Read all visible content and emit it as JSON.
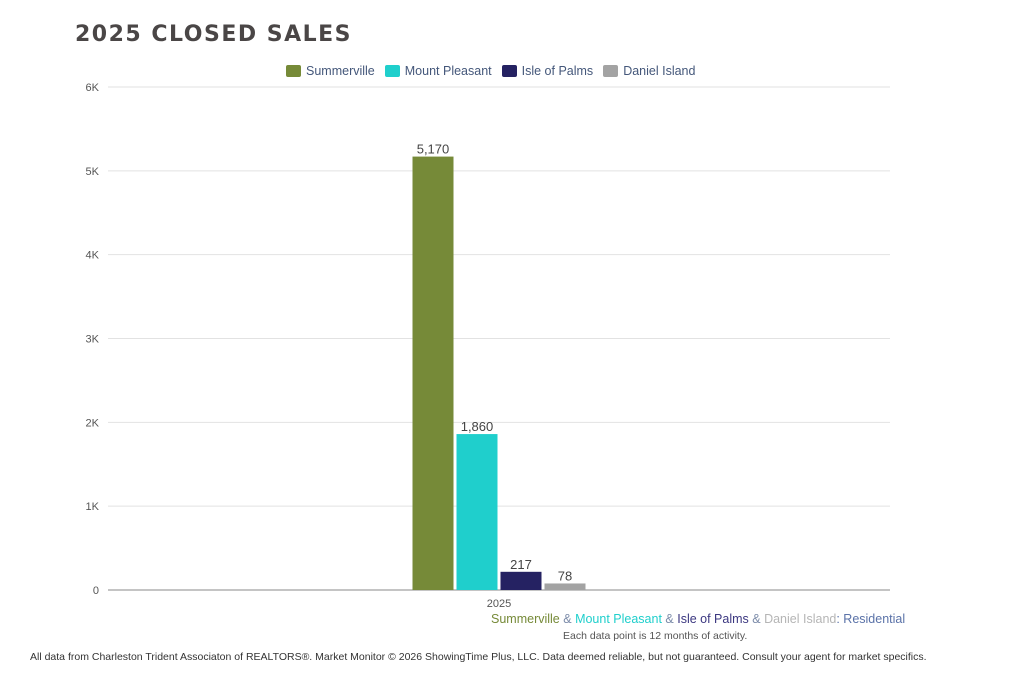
{
  "title": "2025 CLOSED SALES",
  "chart_data": {
    "type": "bar",
    "title": "2025 CLOSED SALES",
    "categories": [
      "2025"
    ],
    "series": [
      {
        "name": "Summerville",
        "values": [
          5170
        ],
        "label": "5,170",
        "color": "#768a38"
      },
      {
        "name": "Mount Pleasant",
        "values": [
          1860
        ],
        "label": "1,860",
        "color": "#1fcfcc"
      },
      {
        "name": "Isle of Palms",
        "values": [
          217
        ],
        "label": "217",
        "color": "#252262"
      },
      {
        "name": "Daniel Island",
        "values": [
          78
        ],
        "label": "78",
        "color": "#a3a3a3"
      }
    ],
    "ylim": [
      0,
      6000
    ],
    "yticks": [
      0,
      1000,
      2000,
      3000,
      4000,
      5000,
      6000
    ],
    "ytick_labels": [
      "0",
      "1K",
      "2K",
      "3K",
      "4K",
      "5K",
      "6K"
    ],
    "legend_position": "top-center",
    "grid": true,
    "xlabel": "",
    "ylabel": ""
  },
  "subtitle": {
    "parts": [
      "Summerville",
      " & ",
      "Mount Pleasant",
      " & ",
      "Isle of Palms",
      " & ",
      "Daniel Island",
      ": Residential"
    ],
    "colors": [
      "#768a38",
      "#7a8aa8",
      "#1fcfcc",
      "#7a8aa8",
      "#3b3780",
      "#7a8aa8",
      "#b5b5b5",
      "#5a72a8"
    ]
  },
  "note": "Each data point is 12 months of activity.",
  "footer": "All data from Charleston Trident Associaton of REALTORS®. Market Monitor © 2026 ShowingTime Plus, LLC. Data deemed reliable, but not guaranteed. Consult your agent for market specifics."
}
